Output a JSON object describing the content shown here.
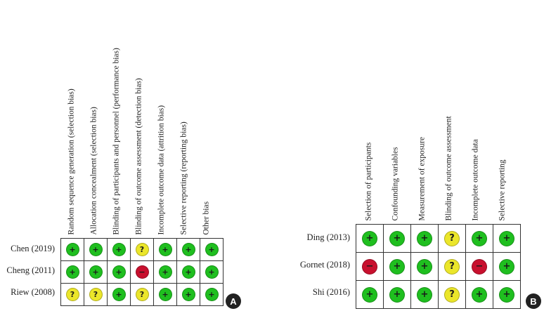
{
  "panel_a": {
    "badge": "A",
    "domains": [
      "Random sequence generation (selection bias)",
      "Allocation concealment (selection bias)",
      "Blinding of participants and personnel (performance bias)",
      "Blinding of outcome assessment (detection bias)",
      "Incomplete outcome data (attrition bias)",
      "Selective reporting (reporting bias)",
      "Other bias"
    ],
    "studies": [
      {
        "name": "Chen (2019)",
        "ratings": [
          "low",
          "low",
          "low",
          "unclear",
          "low",
          "low",
          "low"
        ]
      },
      {
        "name": "Cheng (2011)",
        "ratings": [
          "low",
          "low",
          "low",
          "high",
          "low",
          "low",
          "low"
        ]
      },
      {
        "name": "Riew (2008)",
        "ratings": [
          "unclear",
          "unclear",
          "low",
          "unclear",
          "low",
          "low",
          "low"
        ]
      }
    ]
  },
  "panel_b": {
    "badge": "B",
    "domains": [
      "Selection of participants",
      "Confounding variables",
      "Measurement of exposure",
      "Blinding of outcome assessment",
      "Incomplete outcome data",
      "Selective reporting"
    ],
    "studies": [
      {
        "name": "Ding (2013)",
        "ratings": [
          "low",
          "low",
          "low",
          "unclear",
          "low",
          "low"
        ]
      },
      {
        "name": "Gornet (2018)",
        "ratings": [
          "high",
          "low",
          "low",
          "unclear",
          "high",
          "low"
        ]
      },
      {
        "name": "Shi (2016)",
        "ratings": [
          "low",
          "low",
          "low",
          "unclear",
          "low",
          "low"
        ]
      }
    ]
  },
  "symbols": {
    "low": "+",
    "unclear": "?",
    "high": "−"
  },
  "colors": {
    "low": "#1fbf1f",
    "unclear": "#ebe62a",
    "high": "#c8102e"
  }
}
